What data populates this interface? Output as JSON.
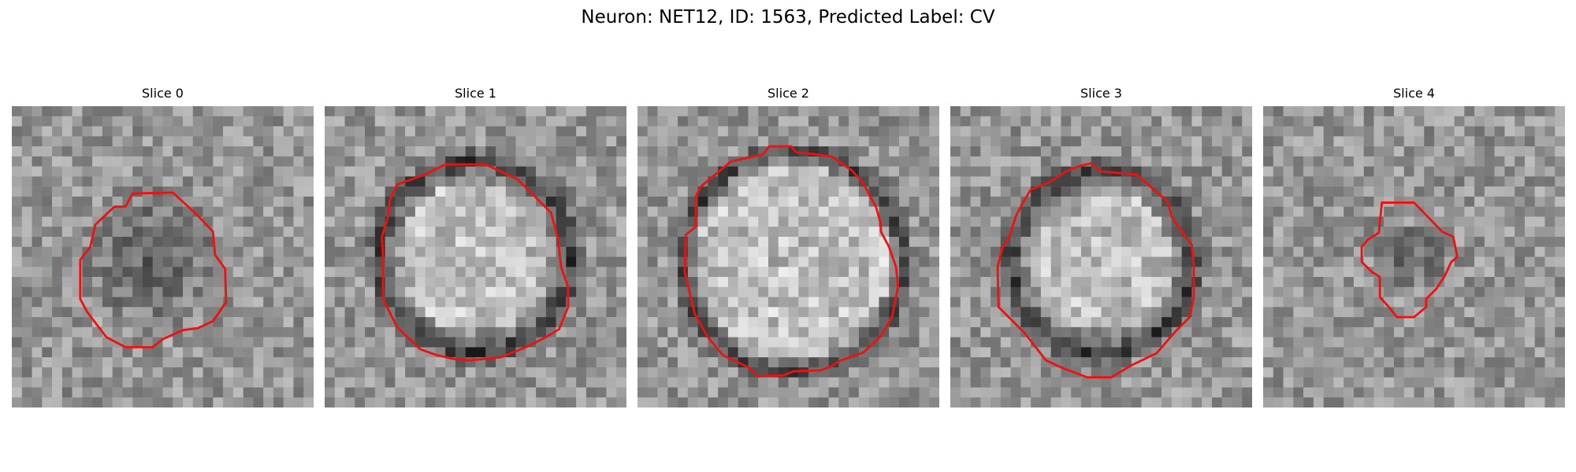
{
  "figure": {
    "title": "Neuron: NET12, ID: 1563, Predicted Label: CV",
    "contour_color": "#ee1111"
  },
  "slices": [
    {
      "title": "Slice 0",
      "image": "grayscale-microscopy-patch",
      "contour": "red-outline",
      "center_shade": "dark"
    },
    {
      "title": "Slice 1",
      "image": "grayscale-microscopy-patch",
      "contour": "red-outline",
      "center_shade": "light"
    },
    {
      "title": "Slice 2",
      "image": "grayscale-microscopy-patch",
      "contour": "red-outline",
      "center_shade": "light"
    },
    {
      "title": "Slice 3",
      "image": "grayscale-microscopy-patch",
      "contour": "red-outline",
      "center_shade": "light"
    },
    {
      "title": "Slice 4",
      "image": "grayscale-microscopy-patch",
      "contour": "red-outline",
      "center_shade": "dark"
    }
  ]
}
